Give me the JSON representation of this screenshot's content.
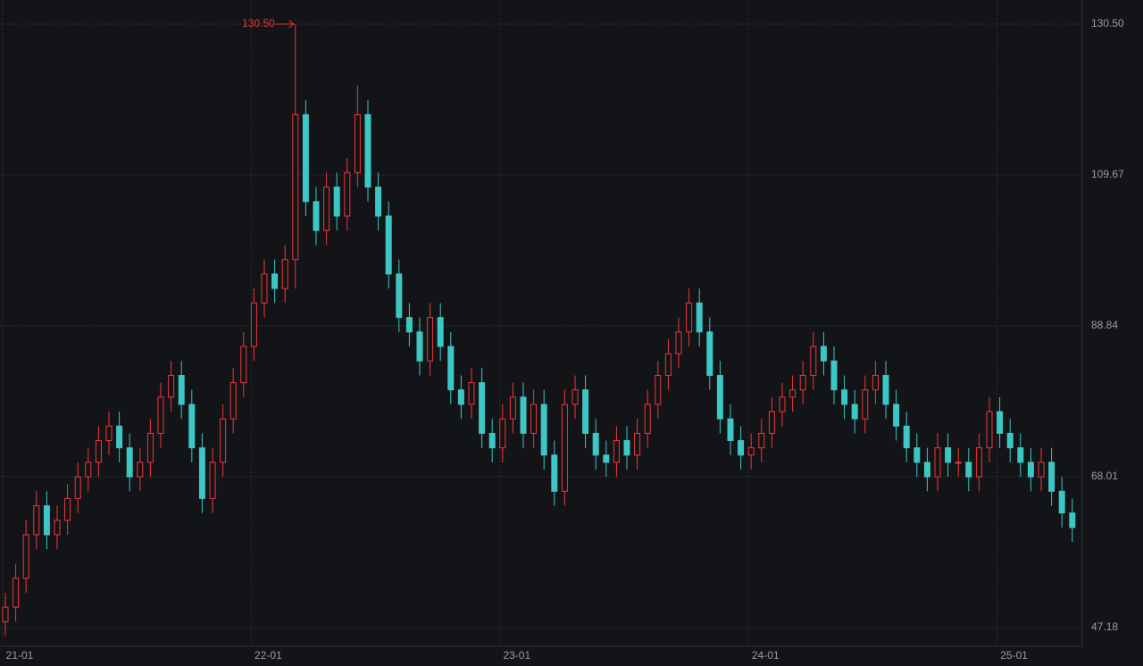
{
  "chart_data": {
    "type": "candlestick",
    "categories": [
      "21-01",
      null,
      null,
      null,
      null,
      null,
      null,
      null,
      null,
      null,
      null,
      null,
      null,
      null,
      null,
      null,
      null,
      null,
      null,
      null,
      null,
      null,
      null,
      null,
      "22-01",
      null,
      null,
      null,
      null,
      null,
      null,
      null,
      null,
      null,
      null,
      null,
      null,
      null,
      null,
      null,
      null,
      null,
      null,
      null,
      null,
      null,
      null,
      null,
      "23-01",
      null,
      null,
      null,
      null,
      null,
      null,
      null,
      null,
      null,
      null,
      null,
      null,
      null,
      null,
      null,
      null,
      null,
      null,
      null,
      null,
      null,
      null,
      null,
      "24-01",
      null,
      null,
      null,
      null,
      null,
      null,
      null,
      null,
      null,
      null,
      null,
      null,
      null,
      null,
      null,
      null,
      null,
      null,
      null,
      null,
      null,
      null,
      null,
      "25-01",
      null,
      null,
      null,
      null,
      null,
      null,
      null
    ],
    "open": [
      48,
      50,
      54,
      60,
      64,
      60,
      62,
      65,
      68,
      70,
      73,
      75,
      72,
      68,
      70,
      74,
      79,
      82,
      78,
      72,
      65,
      70,
      76,
      81,
      86,
      92,
      96,
      94,
      98,
      118,
      106,
      102,
      108,
      104,
      110,
      118,
      108,
      104,
      96,
      90,
      88,
      84,
      90,
      86,
      80,
      78,
      81,
      74,
      72,
      76,
      79,
      74,
      78,
      71,
      66,
      78,
      80,
      74,
      71,
      70,
      73,
      71,
      74,
      78,
      82,
      85,
      88,
      92,
      88,
      82,
      76,
      73,
      71,
      72,
      74,
      77,
      79,
      80,
      82,
      86,
      84,
      80,
      78,
      76,
      80,
      82,
      78,
      75,
      72,
      70,
      68,
      72,
      70,
      70,
      68,
      72,
      77,
      74,
      72,
      70,
      68,
      70,
      66,
      63
    ],
    "high": [
      52,
      56,
      62,
      66,
      66,
      64,
      67,
      70,
      72,
      75,
      77,
      77,
      74,
      72,
      76,
      81,
      84,
      84,
      80,
      74,
      72,
      78,
      83,
      88,
      94,
      98,
      98,
      100,
      130.5,
      120,
      108,
      110,
      110,
      112,
      122,
      120,
      110,
      106,
      98,
      92,
      90,
      92,
      92,
      88,
      82,
      83,
      83,
      76,
      78,
      81,
      81,
      80,
      80,
      73,
      80,
      82,
      82,
      76,
      73,
      75,
      75,
      76,
      80,
      84,
      87,
      90,
      94,
      94,
      90,
      84,
      78,
      75,
      74,
      76,
      79,
      81,
      82,
      84,
      88,
      88,
      86,
      82,
      80,
      82,
      84,
      84,
      80,
      77,
      74,
      72,
      74,
      74,
      72,
      72,
      74,
      79,
      79,
      76,
      74,
      72,
      72,
      72,
      68,
      65
    ],
    "low": [
      46,
      48,
      52,
      58,
      58,
      58,
      60,
      63,
      66,
      68,
      71,
      70,
      66,
      66,
      68,
      72,
      77,
      76,
      70,
      63,
      63,
      68,
      74,
      79,
      84,
      90,
      92,
      92,
      94,
      104,
      100,
      100,
      102,
      102,
      108,
      106,
      102,
      94,
      88,
      86,
      82,
      82,
      84,
      78,
      76,
      76,
      72,
      70,
      70,
      74,
      72,
      72,
      69,
      64,
      64,
      76,
      72,
      69,
      68,
      68,
      69,
      69,
      72,
      76,
      80,
      83,
      86,
      86,
      80,
      74,
      71,
      69,
      69,
      70,
      72,
      75,
      77,
      78,
      80,
      82,
      78,
      76,
      74,
      74,
      78,
      76,
      73,
      70,
      68,
      66,
      66,
      68,
      68,
      66,
      66,
      70,
      72,
      70,
      68,
      66,
      66,
      64,
      61,
      59
    ],
    "close": [
      50,
      54,
      60,
      64,
      60,
      62,
      65,
      68,
      70,
      73,
      75,
      72,
      68,
      70,
      74,
      79,
      82,
      78,
      72,
      65,
      70,
      76,
      81,
      86,
      92,
      96,
      94,
      98,
      118,
      106,
      102,
      108,
      104,
      110,
      118,
      108,
      104,
      96,
      90,
      88,
      84,
      90,
      86,
      80,
      78,
      81,
      74,
      72,
      76,
      79,
      74,
      78,
      71,
      66,
      78,
      80,
      74,
      71,
      70,
      73,
      71,
      74,
      78,
      82,
      85,
      88,
      92,
      88,
      82,
      76,
      73,
      71,
      72,
      74,
      77,
      79,
      80,
      82,
      86,
      84,
      80,
      78,
      76,
      80,
      82,
      78,
      75,
      72,
      70,
      68,
      72,
      70,
      70,
      68,
      72,
      77,
      74,
      72,
      70,
      68,
      70,
      66,
      63,
      61
    ],
    "up_color": "#f0363d",
    "down_color": "#3cc7c4",
    "annotation": "130.50",
    "ylim": [
      44.59,
      133.83
    ],
    "yticks": [
      47.18,
      68.01,
      88.84,
      109.67,
      {
        "value": 130.5,
        "label": "130.50"
      }
    ],
    "grid": true
  }
}
